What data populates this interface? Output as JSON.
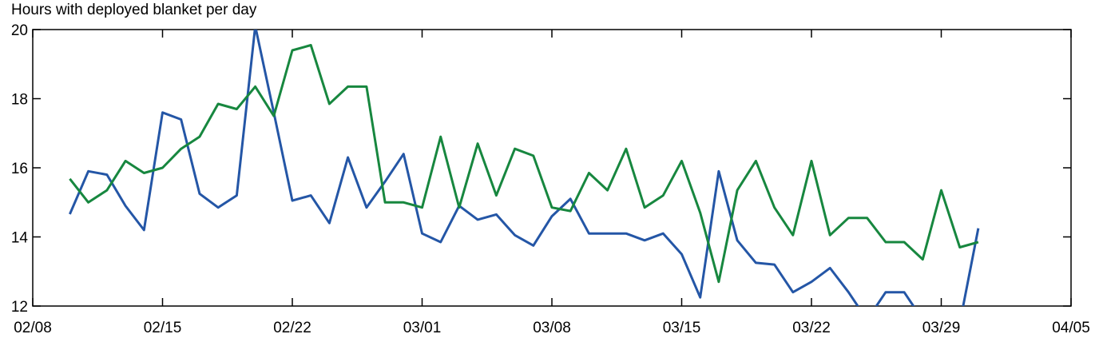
{
  "chart_data": {
    "type": "line",
    "title": "Hours with deployed blanket per day",
    "x": [
      "02/10",
      "02/11",
      "02/12",
      "02/13",
      "02/14",
      "02/15",
      "02/16",
      "02/17",
      "02/18",
      "02/19",
      "02/20",
      "02/21",
      "02/22",
      "02/23",
      "02/24",
      "02/25",
      "02/26",
      "02/27",
      "02/28",
      "03/01",
      "03/02",
      "03/03",
      "03/04",
      "03/05",
      "03/06",
      "03/07",
      "03/08",
      "03/09",
      "03/10",
      "03/11",
      "03/12",
      "03/13",
      "03/14",
      "03/15",
      "03/16",
      "03/17",
      "03/18",
      "03/19",
      "03/20",
      "03/21",
      "03/22",
      "03/23",
      "03/24",
      "03/25",
      "03/26",
      "03/27",
      "03/28",
      "03/29",
      "03/30",
      "03/31"
    ],
    "series": [
      {
        "color": "#2456a6",
        "values": [
          14.66,
          15.9,
          15.8,
          14.9,
          14.2,
          17.6,
          17.4,
          15.25,
          14.85,
          15.2,
          20.1,
          17.6,
          15.05,
          15.2,
          14.4,
          16.3,
          14.85,
          15.6,
          16.4,
          14.1,
          13.85,
          14.9,
          14.5,
          14.65,
          14.05,
          13.75,
          14.6,
          15.1,
          14.1,
          14.1,
          14.1,
          13.9,
          14.1,
          13.5,
          12.25,
          15.9,
          13.9,
          13.25,
          13.2,
          12.4,
          12.7,
          13.1,
          12.4,
          11.6,
          12.4,
          12.4,
          11.6,
          11.5,
          11.5,
          14.25
        ]
      },
      {
        "color": "#17873f",
        "values": [
          15.68,
          15.0,
          15.35,
          16.2,
          15.85,
          16.0,
          16.55,
          16.9,
          17.85,
          17.7,
          18.35,
          17.5,
          19.4,
          19.55,
          17.85,
          18.35,
          18.35,
          15.0,
          15.0,
          14.85,
          16.9,
          14.85,
          16.7,
          15.2,
          16.55,
          16.35,
          14.85,
          14.75,
          15.85,
          15.35,
          16.55,
          14.85,
          15.2,
          16.2,
          14.7,
          12.7,
          15.35,
          16.2,
          14.85,
          14.05,
          16.2,
          14.05,
          14.55,
          14.55,
          13.85,
          13.85,
          13.35,
          15.35,
          13.7,
          13.85
        ]
      }
    ],
    "xlim": [
      "02/08",
      "04/05"
    ],
    "xticks": [
      "02/08",
      "02/15",
      "02/22",
      "03/01",
      "03/08",
      "03/15",
      "03/22",
      "03/29",
      "04/05"
    ],
    "ylim": [
      12,
      20
    ],
    "yticks": [
      12,
      14,
      16,
      18,
      20
    ]
  }
}
